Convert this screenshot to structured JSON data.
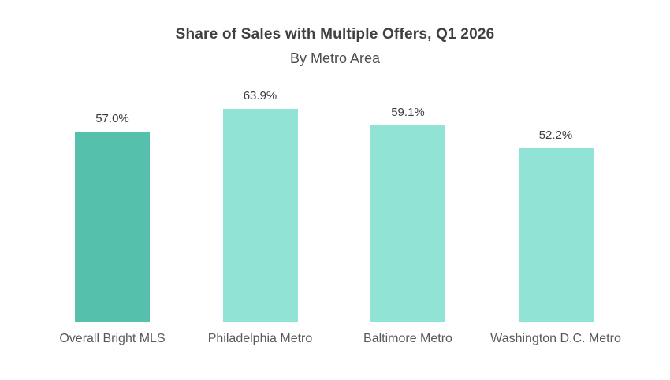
{
  "chart_data": {
    "type": "bar",
    "title": "Share of Sales with Multiple Offers, Q1 2026",
    "subtitle": "By Metro Area",
    "categories": [
      "Overall Bright MLS",
      "Philadelphia Metro",
      "Baltimore Metro",
      "Washington D.C. Metro"
    ],
    "values": [
      57.0,
      63.9,
      59.1,
      52.2
    ],
    "value_labels": [
      "57.0%",
      "63.9%",
      "59.1%",
      "52.2%"
    ],
    "ylabel": "",
    "xlabel": "",
    "ylim": [
      0,
      70
    ],
    "grid": false,
    "legend": false,
    "data_labels": true,
    "bar_colors": [
      "#55C1AC",
      "#90E3D5",
      "#90E3D5",
      "#90E3D5"
    ],
    "axis_line_color": "#d9d9d9",
    "title_color": "#404040",
    "label_color": "#595959"
  }
}
